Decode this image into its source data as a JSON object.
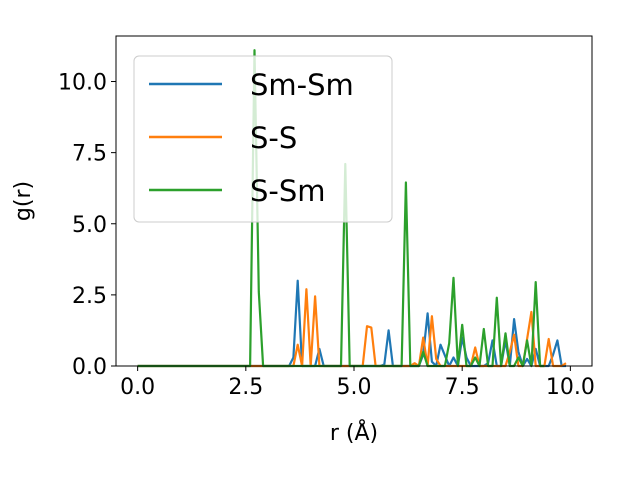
{
  "chart_data": {
    "type": "line",
    "title": "",
    "xlabel": "r (Å)",
    "ylabel": "g(r)",
    "xlim": [
      -0.5,
      10.5
    ],
    "ylim": [
      0.0,
      11.6
    ],
    "xticks": [
      0.0,
      2.5,
      5.0,
      7.5,
      10.0
    ],
    "xtick_labels": [
      "0.0",
      "2.5",
      "5.0",
      "7.5",
      "10.0"
    ],
    "yticks": [
      0.0,
      2.5,
      5.0,
      7.5,
      10.0
    ],
    "ytick_labels": [
      "0.0",
      "2.5",
      "5.0",
      "7.5",
      "10.0"
    ],
    "grid": false,
    "legend_position": "upper-left",
    "series": [
      {
        "name": "Sm-Sm",
        "color": "#1f77b4",
        "x": [
          0.0,
          3.5,
          3.6,
          3.7,
          3.8,
          4.1,
          4.2,
          4.3,
          5.6,
          5.7,
          5.8,
          5.9,
          6.5,
          6.6,
          6.7,
          6.8,
          6.9,
          7.0,
          7.2,
          7.3,
          7.4,
          7.5,
          7.6,
          7.7,
          8.0,
          8.1,
          8.2,
          8.3,
          8.4,
          8.5,
          8.6,
          8.7,
          8.8,
          8.9,
          9.0,
          9.1,
          9.2,
          9.3,
          9.5,
          9.6,
          9.7,
          9.8,
          9.9
        ],
        "y": [
          0.0,
          0.0,
          0.3,
          3.0,
          0.0,
          0.0,
          0.6,
          0.0,
          0.0,
          0.05,
          1.25,
          0.0,
          0.0,
          0.4,
          1.85,
          0.15,
          0.0,
          0.75,
          0.0,
          0.3,
          0.0,
          1.0,
          0.3,
          0.0,
          0.0,
          0.1,
          0.9,
          0.0,
          0.0,
          0.9,
          0.0,
          1.65,
          0.5,
          0.0,
          0.25,
          0.0,
          0.6,
          0.0,
          0.0,
          0.4,
          0.9,
          0.0,
          0.0
        ]
      },
      {
        "name": "S-S",
        "color": "#ff7f0e",
        "x": [
          0.0,
          3.5,
          3.6,
          3.7,
          3.8,
          3.9,
          4.0,
          4.1,
          4.2,
          5.2,
          5.3,
          5.4,
          5.5,
          6.3,
          6.4,
          6.5,
          6.6,
          6.7,
          6.8,
          6.9,
          7.0,
          7.7,
          7.8,
          7.9,
          8.5,
          8.6,
          8.7,
          8.8,
          8.9,
          9.1,
          9.2,
          9.3,
          9.4,
          9.5,
          9.6,
          9.7,
          9.8,
          9.9
        ],
        "y": [
          0.0,
          0.0,
          0.0,
          0.75,
          0.0,
          2.7,
          0.0,
          2.45,
          0.0,
          0.0,
          1.4,
          1.35,
          0.0,
          0.0,
          0.1,
          0.0,
          1.0,
          0.0,
          1.75,
          0.25,
          0.0,
          0.0,
          0.65,
          0.0,
          0.0,
          0.5,
          1.1,
          0.0,
          0.0,
          1.9,
          0.0,
          0.0,
          0.0,
          0.95,
          0.0,
          0.0,
          0.0,
          0.1
        ]
      },
      {
        "name": "S-Sm",
        "color": "#2ca02c",
        "x": [
          0.0,
          2.6,
          2.7,
          2.8,
          2.9,
          4.6,
          4.7,
          4.8,
          4.9,
          6.0,
          6.1,
          6.2,
          6.3,
          6.4,
          6.5,
          6.6,
          6.7,
          6.8,
          7.1,
          7.2,
          7.3,
          7.4,
          7.5,
          7.6,
          7.7,
          7.8,
          7.9,
          8.0,
          8.1,
          8.2,
          8.3,
          8.4,
          8.5,
          8.6,
          8.7,
          8.8,
          8.9,
          9.0,
          9.1,
          9.2,
          9.3,
          9.4
        ],
        "y": [
          0.0,
          0.0,
          11.1,
          2.6,
          0.0,
          0.0,
          0.0,
          7.1,
          0.0,
          0.0,
          0.0,
          6.45,
          0.0,
          0.0,
          0.0,
          0.5,
          0.0,
          0.0,
          0.0,
          0.8,
          3.1,
          0.0,
          1.45,
          0.0,
          0.0,
          0.3,
          0.0,
          1.3,
          0.0,
          0.0,
          2.4,
          0.0,
          1.15,
          0.0,
          0.0,
          0.3,
          0.0,
          0.9,
          0.0,
          2.95,
          0.0,
          0.0
        ]
      }
    ]
  }
}
